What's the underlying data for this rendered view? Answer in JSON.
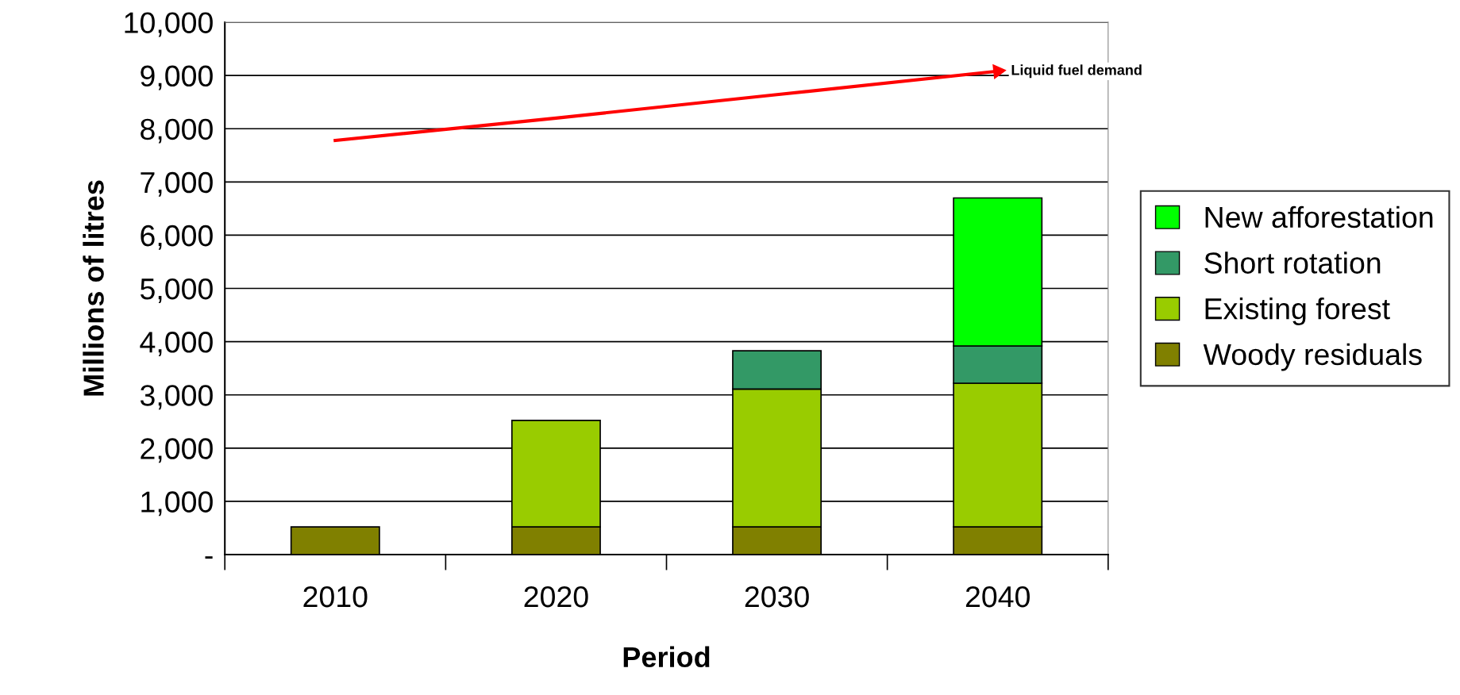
{
  "chart_data": {
    "type": "bar",
    "stacked": true,
    "xlabel": "Period",
    "ylabel": "Millions of litres",
    "categories": [
      "2010",
      "2020",
      "2030",
      "2040"
    ],
    "series": [
      {
        "name": "Woody residuals",
        "color": "#808000",
        "values": [
          520,
          520,
          520,
          520
        ]
      },
      {
        "name": "Existing forest",
        "color": "#99cc00",
        "values": [
          null,
          2000,
          2590,
          2700
        ]
      },
      {
        "name": "Short rotation",
        "color": "#339966",
        "values": [
          null,
          null,
          720,
          700
        ]
      },
      {
        "name": "New afforestation",
        "color": "#00ff00",
        "values": [
          null,
          null,
          null,
          2780
        ]
      },
      {
        "name": "Liquid fuel demand",
        "type": "line",
        "color": "#ff0000",
        "values": [
          7780,
          8200,
          8640,
          9080
        ]
      }
    ],
    "ylim": [
      0,
      10000
    ],
    "yticks": [
      {
        "value": 0,
        "label": "-"
      },
      {
        "value": 1000,
        "label": "1,000"
      },
      {
        "value": 2000,
        "label": "2,000"
      },
      {
        "value": 3000,
        "label": "3,000"
      },
      {
        "value": 4000,
        "label": "4,000"
      },
      {
        "value": 5000,
        "label": "5,000"
      },
      {
        "value": 6000,
        "label": "6,000"
      },
      {
        "value": 7000,
        "label": "7,000"
      },
      {
        "value": 8000,
        "label": "8,000"
      },
      {
        "value": 9000,
        "label": "9,000"
      },
      {
        "value": 10000,
        "label": "10,000"
      }
    ],
    "grid": "y",
    "legend": "right"
  }
}
